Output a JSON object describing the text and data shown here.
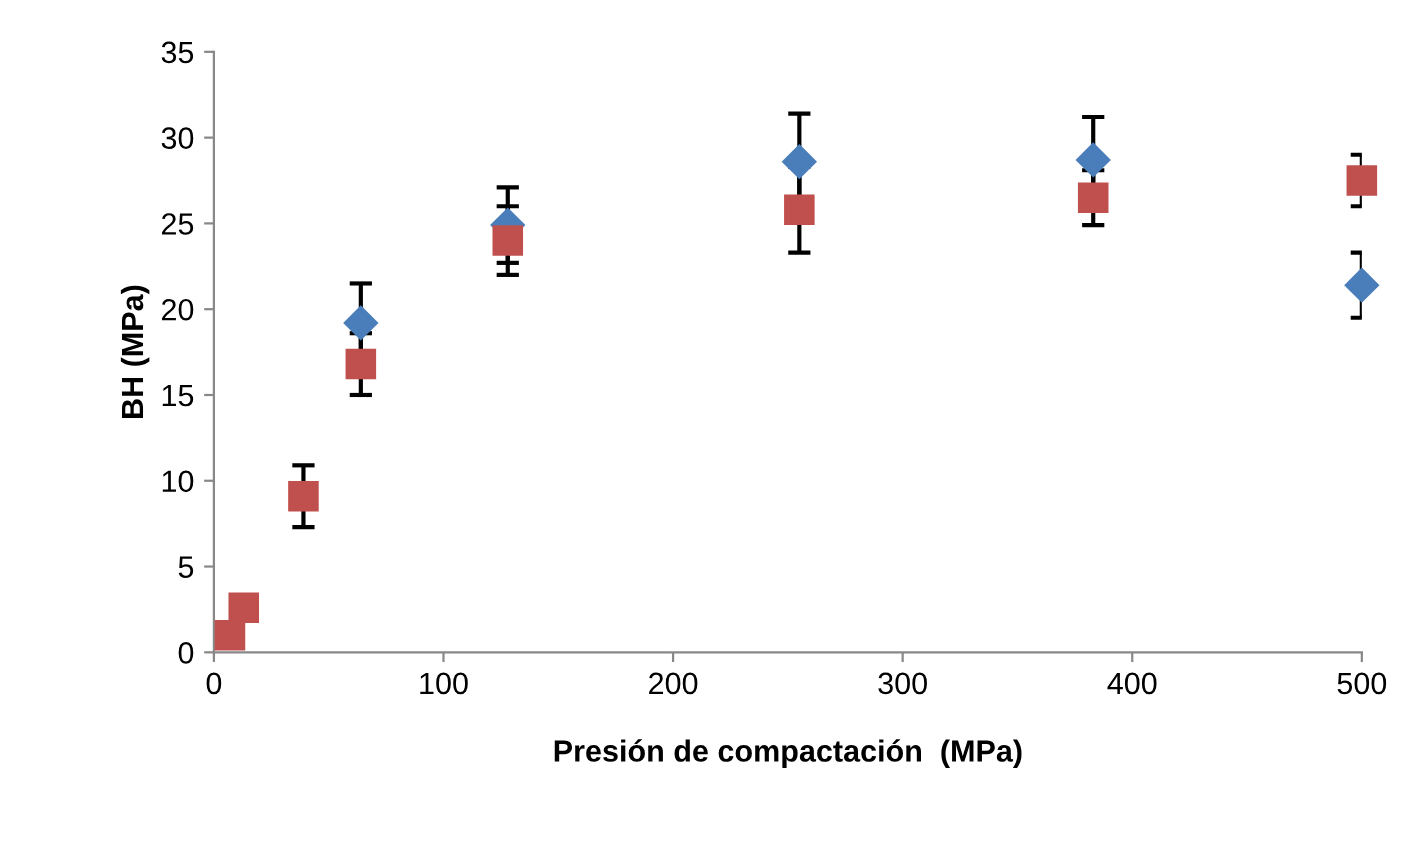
{
  "chart_data": {
    "type": "scatter",
    "xlabel": "Presión de compactación  (MPa)",
    "ylabel": "BH (MPa)",
    "xlim": [
      0,
      500
    ],
    "ylim": [
      0,
      35
    ],
    "xticks": [
      0,
      100,
      200,
      300,
      400,
      500
    ],
    "yticks": [
      0,
      5,
      10,
      15,
      20,
      25,
      30,
      35
    ],
    "grid": false,
    "series": [
      {
        "color": "#4a7ebb",
        "marker": "diamond",
        "x": [
          64,
          128,
          255,
          383,
          500
        ],
        "values": [
          19.2,
          24.9,
          28.6,
          28.7,
          21.4
        ],
        "errors": [
          2.3,
          2.2,
          2.8,
          2.5,
          1.9
        ]
      },
      {
        "color": "#c0504d",
        "marker": "square",
        "x": [
          7,
          13,
          39,
          64,
          128,
          255,
          383,
          500
        ],
        "values": [
          1.0,
          2.6,
          9.1,
          16.8,
          24.0,
          25.8,
          26.5,
          27.5
        ],
        "errors": [
          null,
          null,
          1.8,
          1.8,
          2.0,
          2.5,
          1.6,
          1.5
        ]
      }
    ]
  }
}
